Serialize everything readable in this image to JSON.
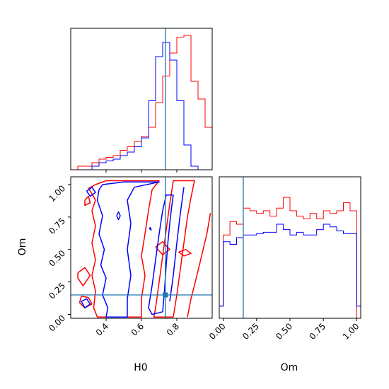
{
  "colors": {
    "series_a": "#ff0000",
    "series_b": "#0000ff",
    "truth": "#1f77b4"
  },
  "chart_data": [
    {
      "panel": "histogram-H0",
      "type": "bar",
      "style": "step",
      "xlim": [
        0.2,
        1.0
      ],
      "xlabel": "",
      "x_edges": [
        0.2,
        0.24,
        0.28,
        0.32,
        0.36,
        0.4,
        0.44,
        0.48,
        0.52,
        0.56,
        0.6,
        0.64,
        0.68,
        0.72,
        0.76,
        0.8,
        0.84,
        0.88,
        0.92,
        0.96,
        1.0
      ],
      "series": [
        {
          "color": "red",
          "values": [
            0,
            2,
            2,
            4,
            6,
            7,
            8,
            11,
            13,
            16,
            19,
            24,
            38,
            53,
            66,
            75,
            76,
            50,
            40,
            24
          ]
        },
        {
          "color": "blue",
          "values": [
            0,
            0,
            0,
            2,
            4,
            5,
            6,
            8,
            10,
            13,
            18,
            39,
            64,
            72,
            62,
            39,
            14,
            2,
            0,
            0
          ]
        }
      ],
      "truth_x": 0.735
    },
    {
      "panel": "histogram-Om",
      "type": "bar",
      "style": "step",
      "xlim": [
        -0.03,
        1.03
      ],
      "xlabel": "Om",
      "x_ticks": [
        0.0,
        0.25,
        0.5,
        0.75,
        1.0
      ],
      "x_tick_labels": [
        "0.00",
        "0.25",
        "0.50",
        "0.75",
        "1.00"
      ],
      "x_edges": [
        -0.03,
        0.0,
        0.05,
        0.1,
        0.15,
        0.2,
        0.25,
        0.3,
        0.35,
        0.4,
        0.45,
        0.5,
        0.55,
        0.6,
        0.65,
        0.7,
        0.75,
        0.8,
        0.85,
        0.9,
        0.95,
        1.0,
        1.03
      ],
      "series": [
        {
          "color": "red",
          "values": [
            0.09,
            0.62,
            0.72,
            0.7,
            0.82,
            0.8,
            0.78,
            0.8,
            0.76,
            0.82,
            0.9,
            0.8,
            0.76,
            0.74,
            0.78,
            0.74,
            0.8,
            0.78,
            0.8,
            0.86,
            0.8,
            0.0
          ]
        },
        {
          "color": "blue",
          "values": [
            0.09,
            0.57,
            0.55,
            0.6,
            0.62,
            0.62,
            0.63,
            0.64,
            0.64,
            0.7,
            0.66,
            0.62,
            0.64,
            0.62,
            0.62,
            0.66,
            0.7,
            0.68,
            0.65,
            0.63,
            0.63,
            0.09
          ]
        }
      ],
      "truth_x": 0.15
    },
    {
      "panel": "contour-H0-Om",
      "type": "scatter",
      "style": "contour",
      "xlim": [
        0.2,
        1.0
      ],
      "ylim": [
        -0.03,
        1.06
      ],
      "xlabel": "H0",
      "ylabel": "Om",
      "x_ticks": [
        0.4,
        0.6,
        0.8
      ],
      "x_tick_labels": [
        "0.4",
        "0.6",
        "0.8"
      ],
      "y_ticks": [
        0.0,
        0.25,
        0.5,
        0.75,
        1.0
      ],
      "y_tick_labels": [
        "0.00",
        "0.25",
        "0.50",
        "0.75",
        "1.00"
      ],
      "truth_x": 0.735,
      "truth_y": 0.15,
      "contours": [
        {
          "color": "red",
          "points": [
            [
              0.3,
              0.97
            ],
            [
              0.32,
              0.93
            ],
            [
              0.34,
              0.88
            ],
            [
              0.32,
              0.8
            ],
            [
              0.34,
              0.68
            ],
            [
              0.32,
              0.55
            ],
            [
              0.34,
              0.42
            ],
            [
              0.32,
              0.3
            ],
            [
              0.34,
              0.18
            ],
            [
              0.33,
              0.05
            ],
            [
              0.35,
              -0.02
            ],
            [
              0.6,
              -0.02
            ],
            [
              0.6,
              0.12
            ],
            [
              0.62,
              0.3
            ],
            [
              0.6,
              0.45
            ],
            [
              0.62,
              0.62
            ],
            [
              0.64,
              0.8
            ],
            [
              0.66,
              0.96
            ],
            [
              0.7,
              1.03
            ],
            [
              0.4,
              1.03
            ],
            [
              0.34,
              1.0
            ],
            [
              0.3,
              0.97
            ]
          ]
        },
        {
          "color": "red",
          "points": [
            [
              0.78,
              -0.02
            ],
            [
              0.8,
              0.15
            ],
            [
              0.82,
              0.35
            ],
            [
              0.84,
              0.55
            ],
            [
              0.86,
              0.75
            ],
            [
              0.88,
              0.9
            ],
            [
              0.9,
              1.03
            ],
            [
              0.78,
              1.03
            ],
            [
              0.76,
              0.85
            ],
            [
              0.74,
              0.65
            ],
            [
              0.72,
              0.45
            ],
            [
              0.7,
              0.25
            ],
            [
              0.68,
              0.05
            ],
            [
              0.67,
              -0.02
            ],
            [
              0.78,
              -0.02
            ]
          ]
        },
        {
          "color": "red",
          "points": [
            [
              0.86,
              -0.02
            ],
            [
              0.88,
              0.12
            ],
            [
              0.91,
              0.28
            ],
            [
              0.94,
              0.45
            ],
            [
              0.97,
              0.62
            ],
            [
              0.99,
              0.78
            ]
          ]
        },
        {
          "color": "red",
          "points": [
            [
              0.24,
              0.32
            ],
            [
              0.28,
              0.36
            ],
            [
              0.31,
              0.3
            ],
            [
              0.27,
              0.22
            ],
            [
              0.24,
              0.28
            ],
            [
              0.24,
              0.32
            ]
          ]
        },
        {
          "color": "red",
          "points": [
            [
              0.26,
              0.14
            ],
            [
              0.3,
              0.13
            ],
            [
              0.32,
              0.08
            ],
            [
              0.28,
              0.05
            ],
            [
              0.25,
              0.09
            ],
            [
              0.26,
              0.14
            ]
          ]
        },
        {
          "color": "red",
          "points": [
            [
              0.28,
              0.88
            ],
            [
              0.3,
              0.91
            ],
            [
              0.31,
              0.86
            ],
            [
              0.28,
              0.84
            ],
            [
              0.28,
              0.88
            ]
          ]
        },
        {
          "color": "red",
          "points": [
            [
              0.68,
              0.52
            ],
            [
              0.72,
              0.56
            ],
            [
              0.76,
              0.5
            ],
            [
              0.72,
              0.46
            ],
            [
              0.68,
              0.52
            ]
          ]
        },
        {
          "color": "red",
          "points": [
            [
              0.81,
              0.48
            ],
            [
              0.85,
              0.5
            ],
            [
              0.88,
              0.47
            ],
            [
              0.84,
              0.45
            ],
            [
              0.81,
              0.48
            ]
          ]
        },
        {
          "color": "blue",
          "points": [
            [
              0.36,
              0.96
            ],
            [
              0.35,
              0.88
            ],
            [
              0.38,
              0.76
            ],
            [
              0.36,
              0.62
            ],
            [
              0.39,
              0.5
            ],
            [
              0.37,
              0.38
            ],
            [
              0.4,
              0.28
            ],
            [
              0.38,
              0.15
            ],
            [
              0.41,
              0.05
            ],
            [
              0.4,
              -0.02
            ],
            [
              0.52,
              -0.02
            ],
            [
              0.52,
              0.12
            ],
            [
              0.54,
              0.3
            ],
            [
              0.52,
              0.5
            ],
            [
              0.54,
              0.7
            ],
            [
              0.52,
              0.88
            ],
            [
              0.56,
              0.98
            ],
            [
              0.7,
              1.02
            ],
            [
              0.5,
              1.02
            ],
            [
              0.38,
              1.0
            ],
            [
              0.36,
              0.96
            ]
          ]
        },
        {
          "color": "blue",
          "points": [
            [
              0.72,
              0.02
            ],
            [
              0.73,
              0.18
            ],
            [
              0.74,
              0.38
            ],
            [
              0.75,
              0.56
            ],
            [
              0.76,
              0.7
            ],
            [
              0.77,
              0.82
            ],
            [
              0.78,
              0.92
            ],
            [
              0.74,
              0.92
            ],
            [
              0.72,
              0.8
            ],
            [
              0.7,
              0.62
            ],
            [
              0.68,
              0.42
            ],
            [
              0.66,
              0.22
            ],
            [
              0.64,
              0.05
            ],
            [
              0.66,
              0.0
            ],
            [
              0.72,
              0.02
            ]
          ]
        },
        {
          "color": "blue",
          "points": [
            [
              0.76,
              0.1
            ],
            [
              0.78,
              0.3
            ],
            [
              0.8,
              0.55
            ],
            [
              0.82,
              0.78
            ],
            [
              0.84,
              0.98
            ]
          ]
        },
        {
          "color": "blue",
          "points": [
            [
              0.26,
              0.1
            ],
            [
              0.29,
              0.12
            ],
            [
              0.31,
              0.08
            ],
            [
              0.28,
              0.05
            ],
            [
              0.26,
              0.1
            ]
          ]
        },
        {
          "color": "blue",
          "points": [
            [
              0.29,
              0.95
            ],
            [
              0.32,
              0.98
            ],
            [
              0.34,
              0.94
            ],
            [
              0.31,
              0.91
            ],
            [
              0.29,
              0.95
            ]
          ]
        },
        {
          "color": "blue",
          "points": [
            [
              0.46,
              0.76
            ],
            [
              0.47,
              0.79
            ],
            [
              0.48,
              0.76
            ],
            [
              0.47,
              0.73
            ],
            [
              0.46,
              0.76
            ]
          ]
        },
        {
          "color": "blue",
          "points": [
            [
              0.645,
              0.66
            ],
            [
              0.65,
              0.67
            ],
            [
              0.655,
              0.65
            ],
            [
              0.645,
              0.66
            ]
          ]
        }
      ]
    }
  ]
}
